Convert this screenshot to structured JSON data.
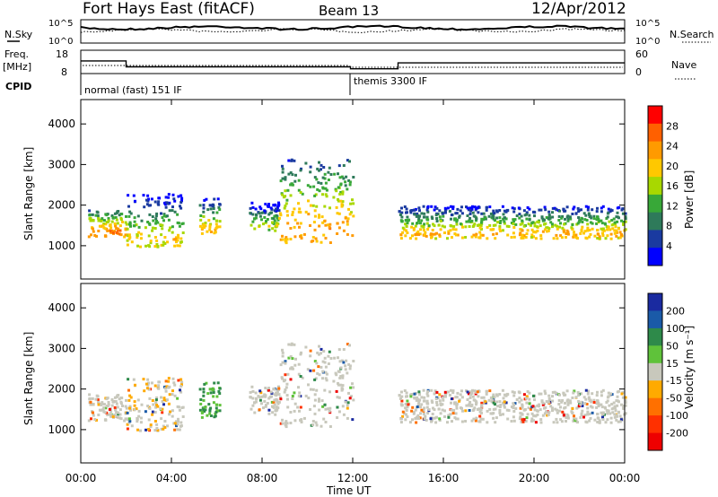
{
  "header": {
    "station": "Fort Hays East (fitACF)",
    "beam": "Beam 13",
    "date": "12/Apr/2012"
  },
  "top_panels": {
    "nsky_label": "N.Sky",
    "nsky_ticks": [
      "10^5",
      "10^0"
    ],
    "nsearch_label": "N.Search",
    "nsearch_ticks": [
      "10^5",
      "10^0"
    ],
    "freq_label": "Freq.",
    "freq_unit": "[MHz]",
    "freq_ticks": [
      "18",
      "8"
    ],
    "nave_label": "Nave",
    "nave_ticks": [
      "60",
      "0"
    ],
    "cpid_label": "CPID",
    "cpid_modes": [
      "normal (fast) 151 IF",
      "themis 3300 IF"
    ]
  },
  "power_colorbar": {
    "label": "Power [dB]",
    "ticks": [
      "28",
      "24",
      "20",
      "16",
      "12",
      "8",
      "4"
    ],
    "colors": [
      "#ff0000",
      "#ff6000",
      "#ff9a00",
      "#ffc800",
      "#a8d800",
      "#38a838",
      "#2e7a5a",
      "#1a3aa0",
      "#0000ff"
    ]
  },
  "velocity_colorbar": {
    "label": "Velocity [m s⁻¹]",
    "ticks": [
      "200",
      "100",
      "50",
      "15",
      "-15",
      "-50",
      "-100",
      "-200"
    ],
    "colors": [
      "#1a2aa0",
      "#1a5aa8",
      "#2e8a4a",
      "#5fc23a",
      "#c8c8bc",
      "#ffaa00",
      "#ff7000",
      "#ff3000",
      "#ee0000"
    ]
  },
  "axes": {
    "ylabel": "Slant Range [km]",
    "yticks": [
      "4000",
      "3000",
      "2000",
      "1000"
    ],
    "xticks": [
      "00:00",
      "04:00",
      "08:00",
      "12:00",
      "16:00",
      "20:00",
      "00:00"
    ],
    "xlabel": "Time UT"
  },
  "chart_data": {
    "type": "heatmap",
    "title": "Fort Hays East (fitACF)",
    "xlabel": "Time UT",
    "ylabel": "Slant Range [km]",
    "x_range_hours": [
      0,
      24
    ],
    "y_range_km": [
      180,
      4600
    ],
    "freq_mhz": {
      "x_hours": [
        0,
        2.0,
        2.0,
        11.9,
        11.9,
        14.0,
        14.0,
        24
      ],
      "values": [
        13.5,
        13.5,
        10.5,
        10.5,
        9.5,
        9.5,
        12.5,
        12.5
      ]
    },
    "cpid": [
      {
        "start_hour": 0,
        "end_hour": 11.9,
        "mode": "normal (fast) 151 IF"
      },
      {
        "start_hour": 11.9,
        "end_hour": 24,
        "mode": "themis 3300 IF"
      }
    ],
    "power_echo_bands": [
      {
        "t0": 0.3,
        "t1": 2.0,
        "r0": 1250,
        "r1": 1900,
        "db": 26
      },
      {
        "t0": 2.0,
        "t1": 4.5,
        "r0": 1000,
        "r1": 2300,
        "db": 20
      },
      {
        "t0": 5.2,
        "t1": 6.1,
        "r0": 1300,
        "r1": 2200,
        "db": 22
      },
      {
        "t0": 7.4,
        "t1": 8.7,
        "r0": 1400,
        "r1": 2100,
        "db": 18
      },
      {
        "t0": 8.7,
        "t1": 12.0,
        "r0": 1100,
        "r1": 3200,
        "db": 24
      },
      {
        "t0": 14.0,
        "t1": 24.0,
        "r0": 1200,
        "r1": 2000,
        "db": 22
      }
    ]
  }
}
